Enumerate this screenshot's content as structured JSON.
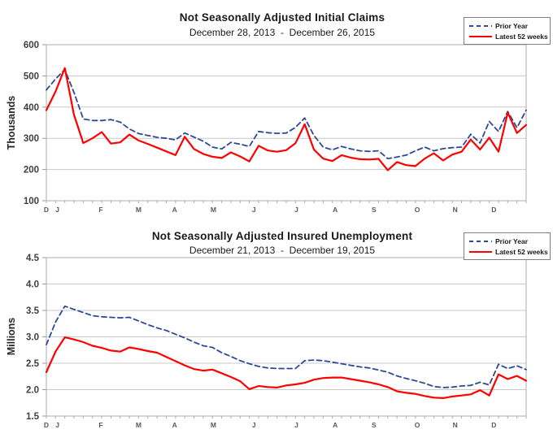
{
  "chart_data": [
    {
      "type": "line",
      "title": "Not Seasonally Adjusted Initial Claims",
      "subtitle": "December 28, 2013  -  December 26, 2015",
      "ylabel": "Thousands",
      "ylim": [
        100,
        600
      ],
      "yticks": [
        600,
        500,
        400,
        300,
        200,
        100
      ],
      "ytick_labels": [
        "600",
        "500",
        "400",
        "300",
        "200",
        "100"
      ],
      "weeks": 53,
      "grid": "horizontal",
      "legend_position": "top-right",
      "months": [
        {
          "label": "D",
          "week": 0
        },
        {
          "label": "J",
          "week": 1.2
        },
        {
          "label": "F",
          "week": 5.9
        },
        {
          "label": "M",
          "week": 10.0
        },
        {
          "label": "A",
          "week": 13.9
        },
        {
          "label": "M",
          "week": 18.1
        },
        {
          "label": "J",
          "week": 22.5
        },
        {
          "label": "J",
          "week": 27.1
        },
        {
          "label": "A",
          "week": 31.3
        },
        {
          "label": "S",
          "week": 35.5
        },
        {
          "label": "O",
          "week": 40.2
        },
        {
          "label": "N",
          "week": 44.3
        },
        {
          "label": "D",
          "week": 48.5
        }
      ],
      "series": [
        {
          "name": "Prior Year",
          "color": "#2B4A96",
          "style": "dashed",
          "values": [
            455,
            490,
            520,
            447,
            362,
            357,
            357,
            360,
            352,
            330,
            315,
            309,
            303,
            300,
            295,
            317,
            304,
            291,
            272,
            266,
            287,
            281,
            274,
            322,
            318,
            316,
            317,
            335,
            365,
            309,
            272,
            263,
            274,
            266,
            260,
            258,
            260,
            235,
            240,
            246,
            260,
            272,
            260,
            267,
            270,
            272,
            313,
            285,
            354,
            322,
            386,
            334,
            390
          ]
        },
        {
          "name": "Latest 52 weeks",
          "color": "#FF0000",
          "style": "solid",
          "values": [
            390,
            450,
            525,
            375,
            285,
            300,
            320,
            283,
            287,
            312,
            293,
            282,
            270,
            258,
            246,
            305,
            266,
            250,
            241,
            237,
            255,
            242,
            226,
            276,
            261,
            257,
            262,
            284,
            345,
            264,
            235,
            227,
            246,
            238,
            233,
            232,
            234,
            198,
            224,
            214,
            211,
            235,
            252,
            229,
            248,
            257,
            296,
            264,
            302,
            257,
            382,
            317,
            343
          ]
        }
      ]
    },
    {
      "type": "line",
      "title": "Not Seasonally Adjusted Insured Unemployment",
      "subtitle": "December 21, 2013  -  December 19, 2015",
      "ylabel": "Millions",
      "ylim": [
        1.5,
        4.5
      ],
      "yticks": [
        4.5,
        4.0,
        3.5,
        3.0,
        2.5,
        2.0,
        1.5
      ],
      "ytick_labels": [
        "4.5",
        "4.0",
        "3.5",
        "3.0",
        "2.5",
        "2.0",
        "1.5"
      ],
      "weeks": 53,
      "grid": "horizontal",
      "legend_position": "top-right",
      "months": [
        {
          "label": "D",
          "week": 0
        },
        {
          "label": "J",
          "week": 1.2
        },
        {
          "label": "F",
          "week": 5.9
        },
        {
          "label": "M",
          "week": 10.0
        },
        {
          "label": "A",
          "week": 13.9
        },
        {
          "label": "M",
          "week": 18.1
        },
        {
          "label": "J",
          "week": 22.5
        },
        {
          "label": "J",
          "week": 27.1
        },
        {
          "label": "A",
          "week": 31.3
        },
        {
          "label": "S",
          "week": 35.5
        },
        {
          "label": "O",
          "week": 40.2
        },
        {
          "label": "N",
          "week": 44.3
        },
        {
          "label": "D",
          "week": 48.5
        }
      ],
      "series": [
        {
          "name": "Prior Year",
          "color": "#2B4A96",
          "style": "dashed",
          "values": [
            2.85,
            3.28,
            3.58,
            3.52,
            3.46,
            3.4,
            3.38,
            3.37,
            3.36,
            3.37,
            3.3,
            3.23,
            3.17,
            3.12,
            3.05,
            2.98,
            2.9,
            2.83,
            2.8,
            2.7,
            2.63,
            2.55,
            2.49,
            2.44,
            2.41,
            2.4,
            2.4,
            2.4,
            2.55,
            2.56,
            2.55,
            2.52,
            2.49,
            2.46,
            2.43,
            2.41,
            2.37,
            2.33,
            2.26,
            2.21,
            2.17,
            2.12,
            2.06,
            2.04,
            2.05,
            2.07,
            2.08,
            2.14,
            2.09,
            2.48,
            2.4,
            2.45,
            2.38
          ]
        },
        {
          "name": "Latest 52 weeks",
          "color": "#FF0000",
          "style": "solid",
          "values": [
            2.33,
            2.72,
            2.99,
            2.95,
            2.9,
            2.83,
            2.79,
            2.74,
            2.72,
            2.8,
            2.77,
            2.73,
            2.7,
            2.62,
            2.54,
            2.46,
            2.39,
            2.36,
            2.38,
            2.31,
            2.24,
            2.16,
            2.01,
            2.07,
            2.05,
            2.04,
            2.08,
            2.1,
            2.13,
            2.19,
            2.22,
            2.23,
            2.23,
            2.2,
            2.17,
            2.14,
            2.1,
            2.05,
            1.97,
            1.94,
            1.92,
            1.88,
            1.85,
            1.84,
            1.87,
            1.89,
            1.91,
            1.99,
            1.89,
            2.29,
            2.2,
            2.26,
            2.17
          ]
        }
      ]
    }
  ]
}
